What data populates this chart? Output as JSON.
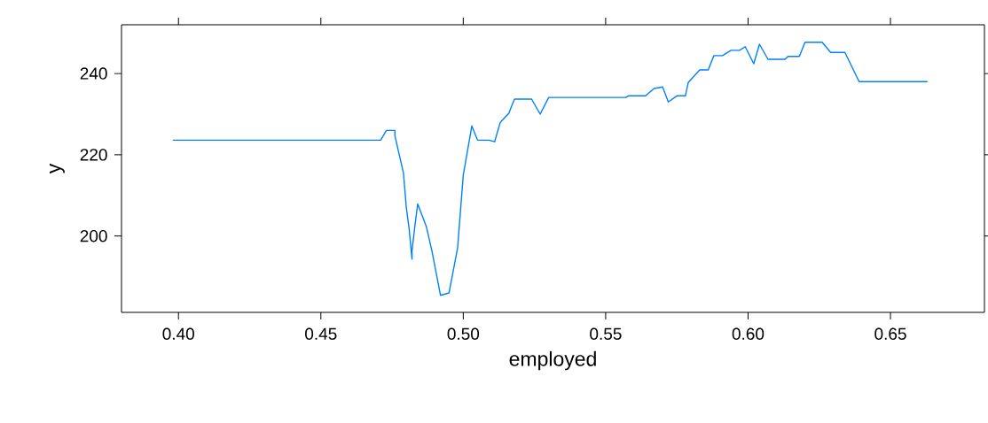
{
  "chart_data": {
    "type": "line",
    "xlabel": "employed",
    "ylabel": "y",
    "x": [
      0.398,
      0.471,
      0.473,
      0.476,
      0.476,
      0.479,
      0.48,
      0.481,
      0.482,
      0.482,
      0.483,
      0.484,
      0.487,
      0.489,
      0.492,
      0.495,
      0.498,
      0.5,
      0.503,
      0.505,
      0.509,
      0.511,
      0.513,
      0.516,
      0.517,
      0.518,
      0.524,
      0.527,
      0.53,
      0.557,
      0.558,
      0.564,
      0.567,
      0.57,
      0.572,
      0.575,
      0.578,
      0.579,
      0.583,
      0.586,
      0.588,
      0.591,
      0.594,
      0.597,
      0.599,
      0.602,
      0.604,
      0.607,
      0.613,
      0.614,
      0.618,
      0.62,
      0.626,
      0.629,
      0.634,
      0.639,
      0.663
    ],
    "series": [
      {
        "color": "#0080ff",
        "values": [
          223.6,
          223.6,
          226.0,
          226.0,
          224.7,
          215.5,
          207.0,
          201.7,
          194.3,
          196.3,
          202.4,
          207.9,
          202.4,
          196.3,
          185.4,
          186.0,
          197.0,
          215.0,
          227.1,
          223.6,
          223.6,
          223.2,
          228.0,
          230.2,
          232.0,
          233.7,
          233.7,
          230.0,
          234.1,
          234.1,
          234.5,
          234.5,
          236.3,
          236.7,
          233.0,
          234.5,
          234.5,
          237.8,
          240.9,
          240.9,
          244.4,
          244.4,
          245.7,
          245.7,
          246.6,
          242.4,
          247.2,
          243.5,
          243.5,
          244.2,
          244.2,
          247.7,
          247.7,
          245.2,
          245.2,
          238.0,
          238.0
        ]
      }
    ],
    "xlim": [
      0.38,
      0.683
    ],
    "ylim": [
      181.2,
      252
    ],
    "xticks": [
      {
        "value": 0.4,
        "label": "0.40"
      },
      {
        "value": 0.45,
        "label": "0.45"
      },
      {
        "value": 0.5,
        "label": "0.50"
      },
      {
        "value": 0.55,
        "label": "0.55"
      },
      {
        "value": 0.6,
        "label": "0.60"
      },
      {
        "value": 0.65,
        "label": "0.65"
      }
    ],
    "yticks": [
      200,
      220,
      240
    ],
    "grid": false,
    "marker": "none",
    "line_style": "solid"
  }
}
